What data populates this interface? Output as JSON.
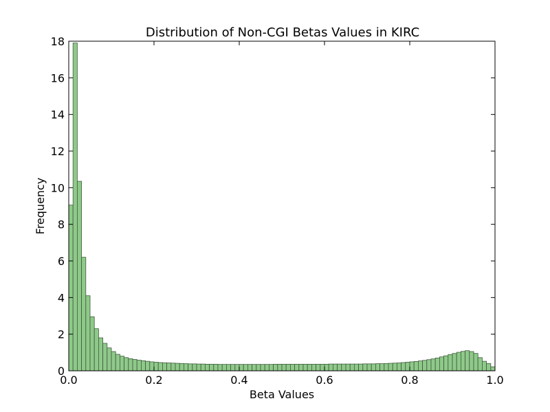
{
  "chart_data": {
    "type": "bar",
    "title": "Distribution of Non-CGI Betas Values in KIRC",
    "xlabel": "Beta Values",
    "ylabel": "Frequency",
    "xlim": [
      0.0,
      1.0
    ],
    "ylim": [
      0,
      18
    ],
    "xticks": [
      "0.0",
      "0.2",
      "0.4",
      "0.6",
      "0.8",
      "1.0"
    ],
    "yticks": [
      "0",
      "2",
      "4",
      "6",
      "8",
      "10",
      "12",
      "14",
      "16",
      "18"
    ],
    "grid": false,
    "bar_color": "#8fc98a",
    "bar_edge_color": "#3d5a3a",
    "bin_width": 0.01,
    "x": [
      0.0,
      0.01,
      0.02,
      0.03,
      0.04,
      0.05,
      0.06,
      0.07,
      0.08,
      0.09,
      0.1,
      0.11,
      0.12,
      0.13,
      0.14,
      0.15,
      0.16,
      0.17,
      0.18,
      0.19,
      0.2,
      0.21,
      0.22,
      0.23,
      0.24,
      0.25,
      0.26,
      0.27,
      0.28,
      0.29,
      0.3,
      0.31,
      0.32,
      0.33,
      0.34,
      0.35,
      0.36,
      0.37,
      0.38,
      0.39,
      0.4,
      0.41,
      0.42,
      0.43,
      0.44,
      0.45,
      0.46,
      0.47,
      0.48,
      0.49,
      0.5,
      0.51,
      0.52,
      0.53,
      0.54,
      0.55,
      0.56,
      0.57,
      0.58,
      0.59,
      0.6,
      0.61,
      0.62,
      0.63,
      0.64,
      0.65,
      0.66,
      0.67,
      0.68,
      0.69,
      0.7,
      0.71,
      0.72,
      0.73,
      0.74,
      0.75,
      0.76,
      0.77,
      0.78,
      0.79,
      0.8,
      0.81,
      0.82,
      0.83,
      0.84,
      0.85,
      0.86,
      0.87,
      0.88,
      0.89,
      0.9,
      0.91,
      0.92,
      0.93,
      0.94,
      0.95,
      0.96,
      0.97,
      0.98,
      0.99
    ],
    "values": [
      9.05,
      17.9,
      10.35,
      6.2,
      4.1,
      2.95,
      2.3,
      1.8,
      1.5,
      1.25,
      1.05,
      0.9,
      0.8,
      0.72,
      0.66,
      0.62,
      0.58,
      0.55,
      0.52,
      0.49,
      0.47,
      0.45,
      0.44,
      0.43,
      0.42,
      0.41,
      0.4,
      0.39,
      0.38,
      0.38,
      0.37,
      0.37,
      0.36,
      0.36,
      0.36,
      0.35,
      0.35,
      0.35,
      0.35,
      0.35,
      0.35,
      0.35,
      0.35,
      0.35,
      0.35,
      0.35,
      0.35,
      0.35,
      0.36,
      0.36,
      0.36,
      0.36,
      0.36,
      0.36,
      0.36,
      0.36,
      0.36,
      0.36,
      0.36,
      0.36,
      0.36,
      0.37,
      0.37,
      0.37,
      0.37,
      0.37,
      0.37,
      0.37,
      0.37,
      0.38,
      0.38,
      0.38,
      0.39,
      0.39,
      0.4,
      0.41,
      0.42,
      0.43,
      0.45,
      0.47,
      0.49,
      0.51,
      0.54,
      0.57,
      0.61,
      0.65,
      0.7,
      0.76,
      0.82,
      0.89,
      0.95,
      1.01,
      1.06,
      1.1,
      1.05,
      0.95,
      0.72,
      0.52,
      0.4,
      0.22
    ]
  }
}
